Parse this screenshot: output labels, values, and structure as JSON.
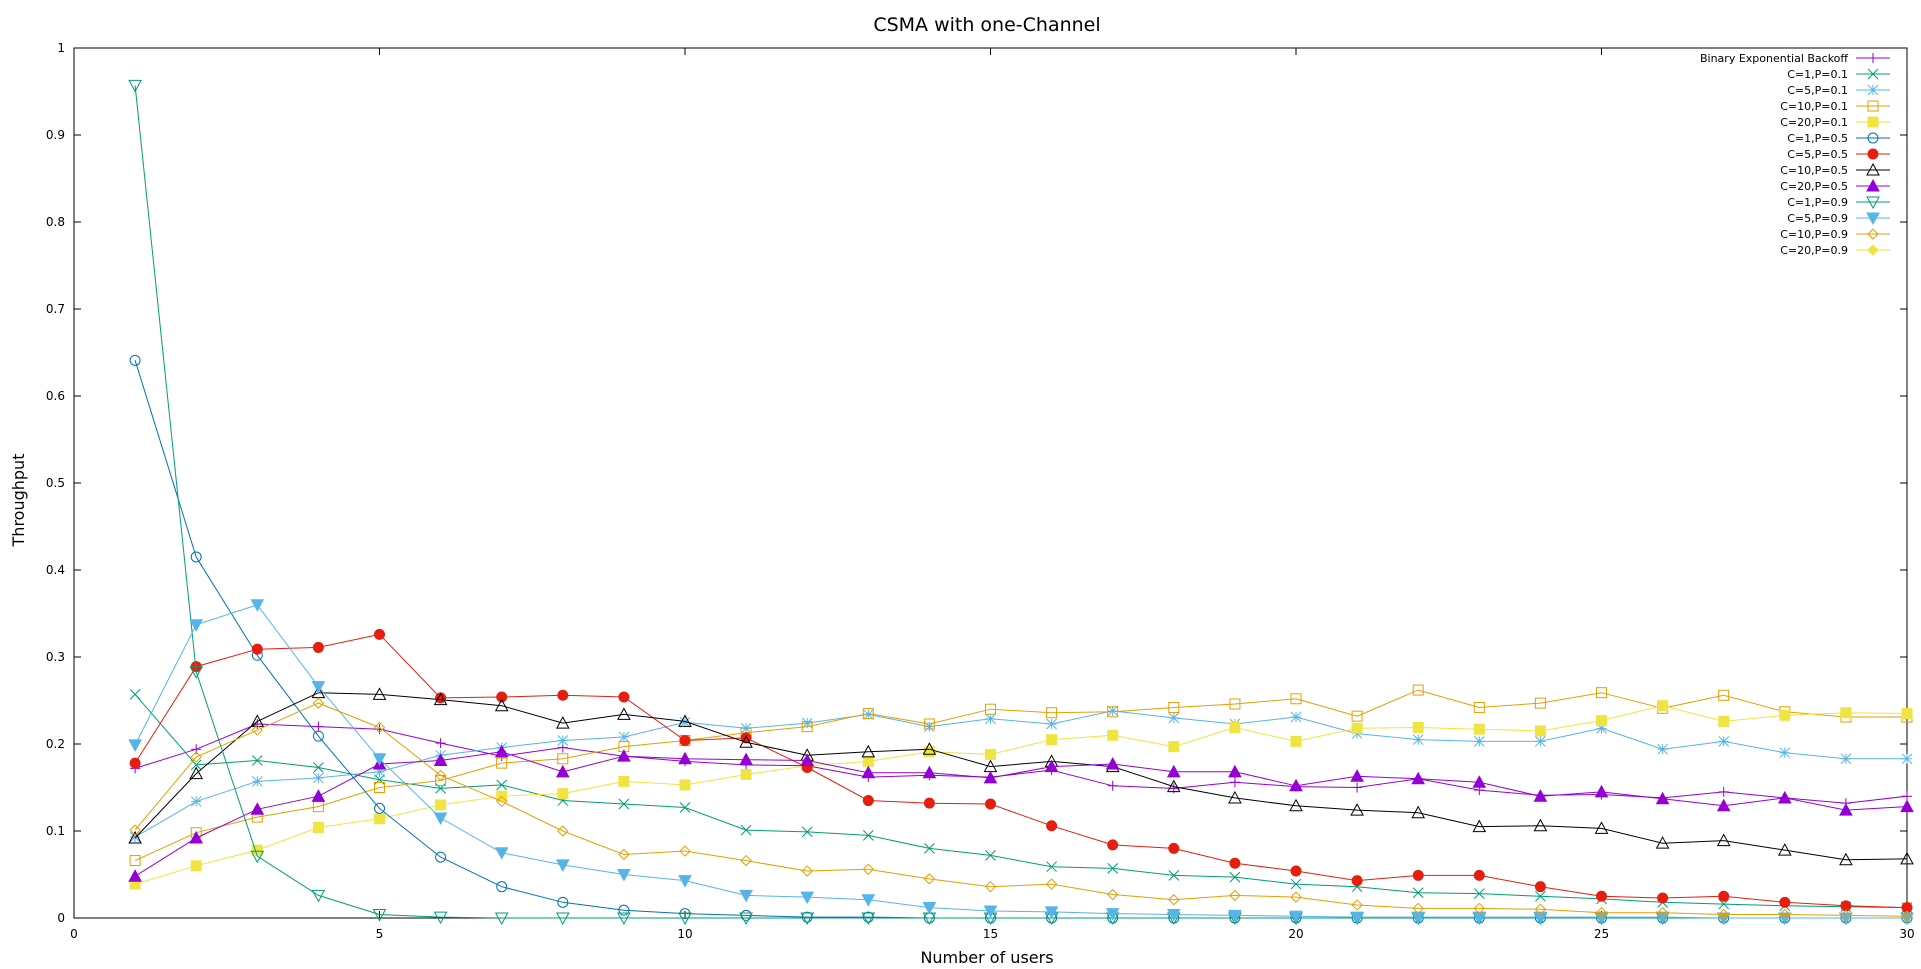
{
  "chart_data": {
    "type": "line",
    "title": "CSMA with one-Channel",
    "xlabel": "Number of users",
    "ylabel": "Throughput",
    "xlim": [
      0,
      30
    ],
    "ylim": [
      0,
      1
    ],
    "xticks": [
      "0",
      "5",
      "10",
      "15",
      "20",
      "25",
      "30"
    ],
    "yticks": [
      "0",
      "0.1",
      "0.2",
      "0.3",
      "0.4",
      "0.5",
      "0.6",
      "0.7",
      "0.8",
      "0.9",
      "1"
    ],
    "grid": false,
    "legend_position": "top-right",
    "x": [
      1,
      2,
      3,
      4,
      5,
      6,
      7,
      8,
      9,
      10,
      11,
      12,
      13,
      14,
      15,
      16,
      17,
      18,
      19,
      20,
      21,
      22,
      23,
      24,
      25,
      26,
      27,
      28,
      29,
      30
    ],
    "series": [
      {
        "name": "Binary Exponential Backoff",
        "color": "#9400d3",
        "marker": "plus",
        "values": [
          0.172,
          0.194,
          0.223,
          0.22,
          0.217,
          0.201,
          0.186,
          0.196,
          0.186,
          0.18,
          0.176,
          0.175,
          0.162,
          0.164,
          0.162,
          0.17,
          0.152,
          0.149,
          0.156,
          0.151,
          0.15,
          0.16,
          0.147,
          0.141,
          0.142,
          0.138,
          0.145,
          0.138,
          0.132,
          0.14
        ]
      },
      {
        "name": "C=1,P=0.1",
        "color": "#009e73",
        "marker": "cross",
        "values": [
          0.257,
          0.176,
          0.181,
          0.173,
          0.159,
          0.149,
          0.153,
          0.135,
          0.131,
          0.127,
          0.101,
          0.099,
          0.095,
          0.08,
          0.072,
          0.059,
          0.057,
          0.049,
          0.047,
          0.039,
          0.036,
          0.029,
          0.028,
          0.025,
          0.022,
          0.018,
          0.016,
          0.014,
          0.013,
          0.012
        ]
      },
      {
        "name": "C=5,P=0.1",
        "color": "#56b4e9",
        "marker": "star",
        "values": [
          0.093,
          0.134,
          0.157,
          0.161,
          0.168,
          0.187,
          0.196,
          0.204,
          0.208,
          0.225,
          0.218,
          0.224,
          0.234,
          0.22,
          0.229,
          0.223,
          0.238,
          0.23,
          0.223,
          0.231,
          0.212,
          0.205,
          0.203,
          0.203,
          0.218,
          0.194,
          0.203,
          0.19,
          0.183,
          0.183
        ]
      },
      {
        "name": "C=10,P=0.1",
        "color": "#e69f00",
        "marker": "box",
        "values": [
          0.066,
          0.098,
          0.116,
          0.128,
          0.15,
          0.158,
          0.178,
          0.183,
          0.197,
          0.204,
          0.213,
          0.22,
          0.235,
          0.223,
          0.24,
          0.236,
          0.237,
          0.242,
          0.246,
          0.252,
          0.232,
          0.262,
          0.242,
          0.247,
          0.259,
          0.241,
          0.256,
          0.237,
          0.231,
          0.231
        ]
      },
      {
        "name": "C=20,P=0.1",
        "color": "#f0e442",
        "marker": "fbox",
        "values": [
          0.039,
          0.06,
          0.078,
          0.104,
          0.114,
          0.13,
          0.14,
          0.143,
          0.157,
          0.153,
          0.165,
          0.175,
          0.18,
          0.191,
          0.188,
          0.205,
          0.21,
          0.197,
          0.219,
          0.203,
          0.218,
          0.219,
          0.217,
          0.215,
          0.227,
          0.244,
          0.226,
          0.233,
          0.236,
          0.235
        ]
      },
      {
        "name": "C=1,P=0.5",
        "color": "#0072b2",
        "marker": "circle",
        "values": [
          0.641,
          0.415,
          0.302,
          0.209,
          0.126,
          0.07,
          0.036,
          0.018,
          0.009,
          0.005,
          0.003,
          0.001,
          0.001,
          0,
          0,
          0,
          0,
          0,
          0,
          0,
          0,
          0,
          0,
          0,
          0,
          0,
          0,
          0,
          0,
          0
        ]
      },
      {
        "name": "C=5,P=0.5",
        "color": "#e51e10",
        "marker": "fcircle",
        "values": [
          0.178,
          0.289,
          0.309,
          0.311,
          0.326,
          0.253,
          0.254,
          0.256,
          0.254,
          0.204,
          0.207,
          0.173,
          0.135,
          0.132,
          0.131,
          0.106,
          0.084,
          0.08,
          0.063,
          0.054,
          0.043,
          0.049,
          0.049,
          0.036,
          0.025,
          0.023,
          0.025,
          0.018,
          0.014,
          0.012
        ]
      },
      {
        "name": "C=10,P=0.5",
        "color": "#000000",
        "marker": "triangle",
        "values": [
          0.092,
          0.166,
          0.226,
          0.259,
          0.257,
          0.251,
          0.244,
          0.224,
          0.234,
          0.226,
          0.202,
          0.187,
          0.191,
          0.194,
          0.174,
          0.18,
          0.174,
          0.151,
          0.138,
          0.129,
          0.124,
          0.121,
          0.105,
          0.106,
          0.103,
          0.086,
          0.089,
          0.078,
          0.067,
          0.068
        ]
      },
      {
        "name": "C=20,P=0.5",
        "color": "#9400d3",
        "marker": "ftriangle",
        "values": [
          0.048,
          0.092,
          0.125,
          0.14,
          0.177,
          0.181,
          0.191,
          0.168,
          0.186,
          0.183,
          0.182,
          0.181,
          0.167,
          0.167,
          0.161,
          0.174,
          0.177,
          0.168,
          0.168,
          0.152,
          0.163,
          0.16,
          0.156,
          0.14,
          0.145,
          0.137,
          0.129,
          0.138,
          0.124,
          0.128
        ]
      },
      {
        "name": "C=1,P=0.9",
        "color": "#009e73",
        "marker": "dtriangle",
        "values": [
          0.957,
          0.283,
          0.071,
          0.026,
          0.004,
          0.001,
          0,
          0,
          0,
          0,
          0,
          0,
          0,
          0,
          0,
          0,
          0,
          0,
          0,
          0,
          0,
          0,
          0,
          0,
          0,
          0,
          0,
          0,
          0,
          0
        ]
      },
      {
        "name": "C=5,P=0.9",
        "color": "#56b4e9",
        "marker": "fdtriangle",
        "values": [
          0.199,
          0.337,
          0.36,
          0.266,
          0.183,
          0.115,
          0.075,
          0.061,
          0.05,
          0.043,
          0.026,
          0.024,
          0.021,
          0.012,
          0.008,
          0.007,
          0.005,
          0.004,
          0.003,
          0.002,
          0.001,
          0.001,
          0.001,
          0.001,
          0.001,
          0.001,
          0,
          0,
          0,
          0
        ]
      },
      {
        "name": "C=10,P=0.9",
        "color": "#e69f00",
        "marker": "diamond",
        "values": [
          0.101,
          0.185,
          0.216,
          0.247,
          0.219,
          0.164,
          0.134,
          0.1,
          0.073,
          0.077,
          0.066,
          0.054,
          0.056,
          0.045,
          0.036,
          0.039,
          0.027,
          0.021,
          0.026,
          0.024,
          0.015,
          0.011,
          0.011,
          0.01,
          0.006,
          0.006,
          0.004,
          0.004,
          0.003,
          0.002
        ]
      },
      {
        "name": "C=20,P=0.9",
        "color": "#f0e442",
        "marker": "fdiamond",
        "values": [
          null,
          null,
          null,
          null,
          null,
          null,
          null,
          null,
          null,
          null,
          null,
          null,
          null,
          null,
          null,
          null,
          null,
          null,
          null,
          null,
          null,
          null,
          null,
          null,
          null,
          null,
          null,
          null,
          null,
          null
        ]
      }
    ]
  }
}
